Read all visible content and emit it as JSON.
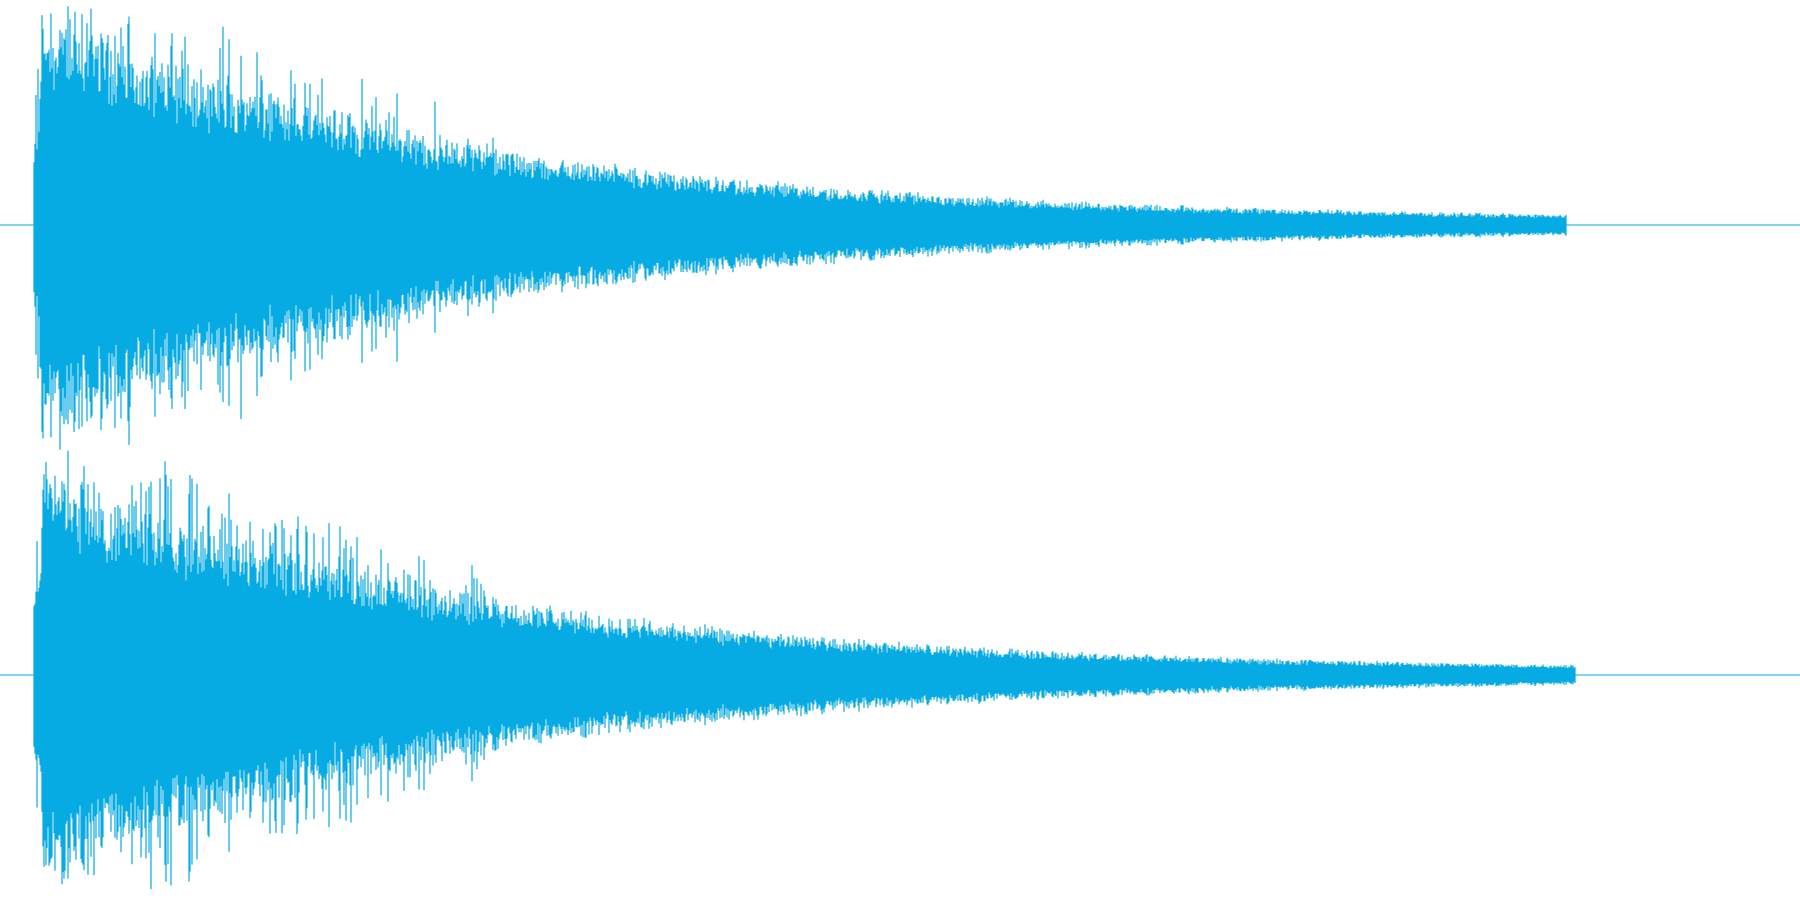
{
  "waveform": {
    "color": "#06ABE3",
    "background": "#FFFFFF",
    "channels": [
      {
        "name": "left",
        "peak_amplitude": 1.0,
        "onset_fraction": 0.019,
        "decay_end_fraction": 0.87
      },
      {
        "name": "right",
        "peak_amplitude": 0.97,
        "onset_fraction": 0.019,
        "decay_end_fraction": 0.875
      }
    ]
  }
}
